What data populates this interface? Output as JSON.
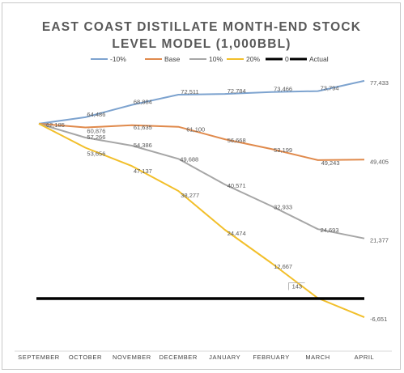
{
  "chart_data": {
    "type": "line",
    "title_lines": [
      "EAST COAST DISTILLATE MONTH-END STOCK",
      "LEVEL MODEL (1,000BBL)"
    ],
    "categories": [
      "SEPTEMBER",
      "OCTOBER",
      "NOVEMBER",
      "DECEMBER",
      "JANUARY",
      "FEBRUARY",
      "MARCH",
      "APRIL"
    ],
    "ylim": [
      -10000,
      80000
    ],
    "grid": false,
    "legend_position": "top",
    "series": [
      {
        "name": "-10%",
        "color": "#7da3cf",
        "values": [
          62185,
          64486,
          68884,
          72511,
          72784,
          73466,
          73794,
          77433
        ],
        "labels": [
          "",
          "64,486",
          "68,884",
          "72,511",
          "72,784",
          "73,466",
          "73,794",
          "77,433"
        ]
      },
      {
        "name": "Base",
        "color": "#e08a4c",
        "values": [
          62185,
          60876,
          61635,
          61100,
          56668,
          53199,
          49243,
          49405
        ],
        "labels": [
          "",
          "60,876",
          "61,635",
          "61,100",
          "56,668",
          "53,199",
          "49,243",
          "49,405"
        ]
      },
      {
        "name": "10%",
        "color": "#a6a6a6",
        "values": [
          62185,
          57266,
          54386,
          49688,
          40571,
          32933,
          24693,
          21377
        ],
        "labels": [
          "62,185",
          "57,266",
          "54,386",
          "49,688",
          "40,571",
          "32,933",
          "24,693",
          "21,377"
        ]
      },
      {
        "name": "20%",
        "color": "#f2bf2a",
        "values": [
          62185,
          53656,
          47137,
          38277,
          24474,
          12667,
          143,
          -6651
        ],
        "labels": [
          "",
          "53,656",
          "47,137",
          "38,277",
          "24,474",
          "12,667",
          "143",
          "-6,651"
        ]
      },
      {
        "name": "0",
        "color": "#000000",
        "values": [
          0,
          0,
          0,
          0,
          0,
          0,
          0,
          0
        ],
        "labels": []
      },
      {
        "name": "Actual",
        "color": "#000000",
        "values": [
          62185,
          null,
          null,
          null,
          null,
          null,
          null,
          null
        ],
        "labels": []
      }
    ]
  }
}
